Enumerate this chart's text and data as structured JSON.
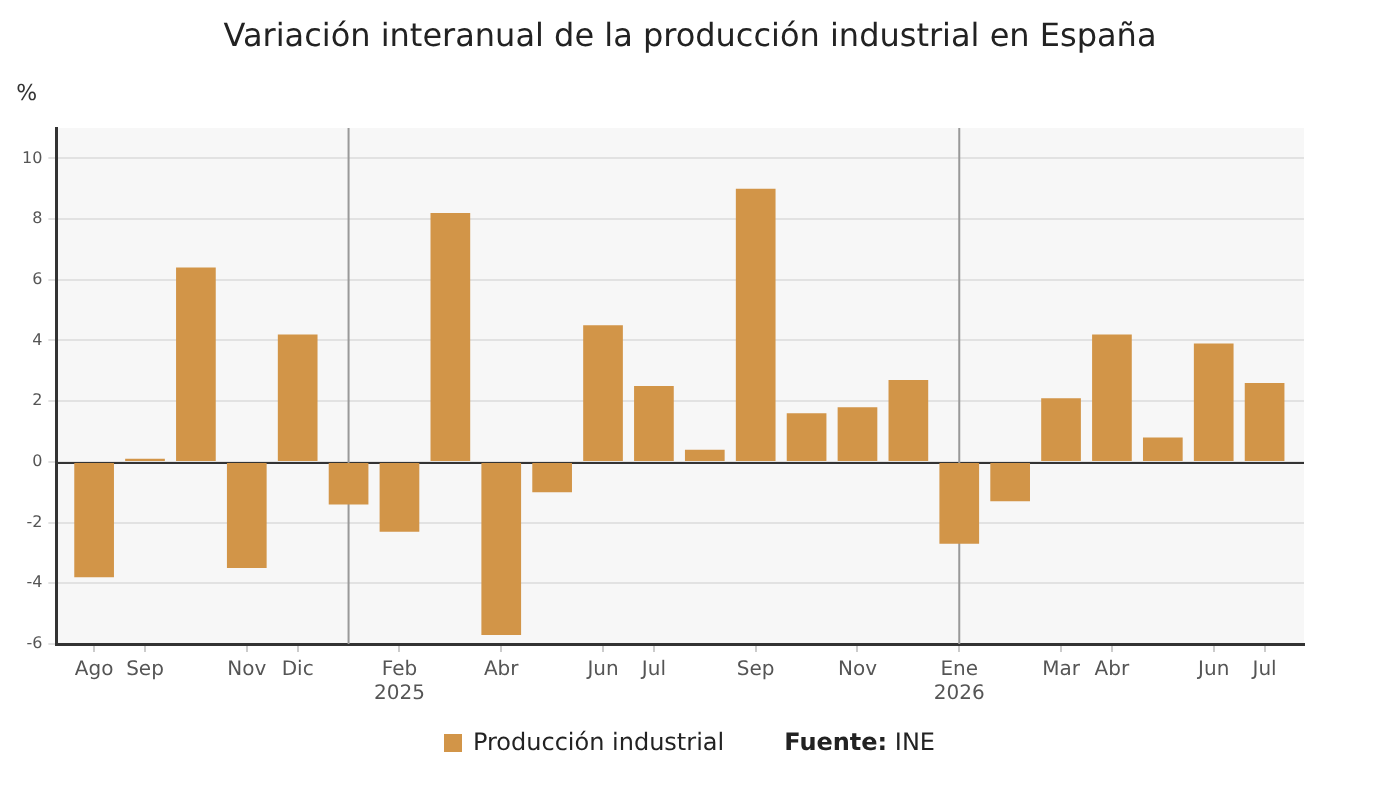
{
  "chart_data": {
    "type": "bar",
    "title": "Variación interanual de la producción industrial en España",
    "ylabel": "%",
    "x": [
      "2024-08",
      "2024-09",
      "2024-10",
      "2024-11",
      "2024-12",
      "2025-01",
      "2025-02",
      "2025-03",
      "2025-04",
      "2025-05",
      "2025-06",
      "2025-07",
      "2025-08",
      "2025-09",
      "2025-10",
      "2025-11",
      "2025-12",
      "2026-01",
      "2026-02",
      "2026-03",
      "2026-04",
      "2026-05",
      "2026-06",
      "2026-07"
    ],
    "series": [
      {
        "name": "Producción industrial",
        "color": "#d29548",
        "values": [
          -3.8,
          0.1,
          6.4,
          -3.5,
          4.2,
          -1.4,
          -2.3,
          8.2,
          -5.7,
          -1.0,
          4.5,
          2.5,
          0.4,
          9.0,
          1.6,
          1.8,
          2.7,
          -2.7,
          -1.3,
          2.1,
          4.2,
          0.8,
          3.9,
          2.6
        ]
      }
    ],
    "xlim": [
      "2024-07-09",
      "2026-07-25"
    ],
    "xticks": [
      {
        "value": "2024-08",
        "label": "Ago"
      },
      {
        "value": "2024-09",
        "label": "Sep"
      },
      {
        "value": "2024-11",
        "label": "Nov"
      },
      {
        "value": "2024-12",
        "label": "Dic"
      },
      {
        "value": "2025-02",
        "label": "Feb\n2025"
      },
      {
        "value": "2025-04",
        "label": "Abr"
      },
      {
        "value": "2025-06",
        "label": "Jun"
      },
      {
        "value": "2025-07",
        "label": "Jul"
      },
      {
        "value": "2025-09",
        "label": "Sep"
      },
      {
        "value": "2025-11",
        "label": "Nov"
      },
      {
        "value": "2026-01",
        "label": "Ene\n2026"
      },
      {
        "value": "2026-03",
        "label": "Mar"
      },
      {
        "value": "2026-04",
        "label": "Abr"
      },
      {
        "value": "2026-06",
        "label": "Jun"
      },
      {
        "value": "2026-07",
        "label": "Jul"
      }
    ],
    "ylim": [
      -6,
      11
    ],
    "yticks": [
      -6,
      -4,
      -2,
      0,
      2,
      4,
      6,
      8,
      10
    ],
    "ref_lines": [
      {
        "axis": "x",
        "value": "2025-01",
        "color": "#999999"
      },
      {
        "axis": "x",
        "value": "2026-01",
        "color": "#999999"
      }
    ],
    "grid": "y",
    "legend": "bottom",
    "annotations": [
      "Fuente: INE"
    ]
  }
}
